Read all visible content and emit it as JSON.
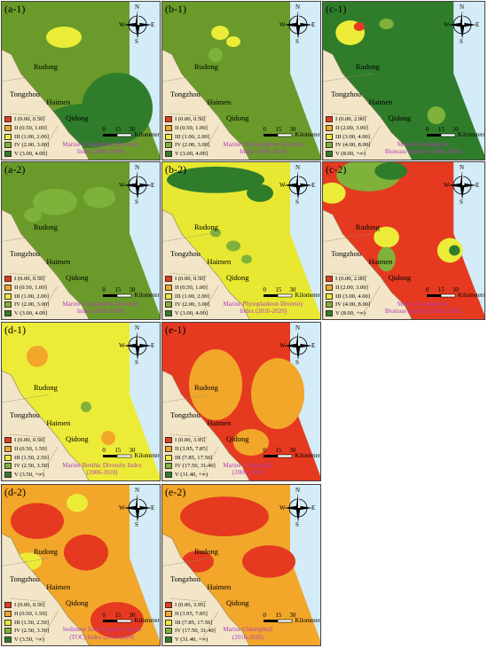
{
  "panels": [
    {
      "id": "a-1",
      "label": "(a-1)",
      "title": [
        "Marine Zooplankton Diversity",
        "Index (2006-2010)"
      ],
      "legend": [
        "I   (0.00, 0.50]",
        "II  (0.50, 1.00]",
        "III (1.00, 2.00]",
        "IV (2.00, 3.00]",
        "V   (3.00, 4.00]"
      ],
      "bg": "#6a9b2a"
    },
    {
      "id": "b-1",
      "label": "(b-1)",
      "title": [
        "Marine Phytoplankton Diversity",
        "Index (2006-2010)"
      ],
      "legend": [
        "I   (0.00, 0.50]",
        "II  (0.50, 1.00]",
        "III (1.00, 2.00]",
        "IV (2.00, 3.00]",
        "V   (3.00, 4.00]"
      ],
      "bg": "#6a9b2a"
    },
    {
      "id": "c-1",
      "label": "(c-1)",
      "title": [
        "Marine Zooplankton",
        "Biomass (mg/m³) (2006-2010)"
      ],
      "legend": [
        "I   (0.00, 2.00]",
        "II  (2.00, 3.00]",
        "III (3.00, 4.00]",
        "IV (4.00, 8.00]",
        "V   (8.00, +∞)"
      ],
      "bg": "#2f7d2a"
    },
    {
      "id": "a-2",
      "label": "(a-2)",
      "title": [
        "Marine Zooplankton Diversity",
        "Index (2016-2020)"
      ],
      "legend": [
        "I   (0.00, 0.50]",
        "II  (0.50, 1.00]",
        "III (1.00, 2.00]",
        "IV (2.00, 3.00]",
        "V   (3.00, 4.00]"
      ],
      "bg": "#6a9b2a"
    },
    {
      "id": "b-2",
      "label": "(b-2)",
      "title": [
        "Marine Phytoplankton Diversity",
        "Index (2016-2020)"
      ],
      "legend": [
        "I   (0.00, 0.50]",
        "II  (0.50, 1.00]",
        "III (1.00, 2.00]",
        "IV (2.00, 3.00]",
        "V   (3.00, 4.00]"
      ],
      "bg": "#e8e832"
    },
    {
      "id": "c-2",
      "label": "(c-2)",
      "title": [
        "Marine Zooplankton",
        "Biomass (mg/m³) (2016-2020)"
      ],
      "legend": [
        "I   (0.00, 2.00]",
        "II  (2.00, 3.00]",
        "III (3.00, 4.00]",
        "IV (4.00, 8.00]",
        "V   (8.00, +∞)"
      ],
      "bg": "#e53a20"
    },
    {
      "id": "d-1",
      "label": "(d-1)",
      "title": [
        "Marine Benthic Diversity Index",
        "(2006-2010)"
      ],
      "legend": [
        "I   (0.00, 0.50]",
        "II  (0.50, 1.50]",
        "III (1.50, 2.50]",
        "IV (2.50, 3.50]",
        "V   (3.50, +∞)"
      ],
      "bg": "#ecec38"
    },
    {
      "id": "e-1",
      "label": "(e-1)",
      "title": [
        "Marine Chlorophyll",
        "(2006-2010)"
      ],
      "legend": [
        "I   (0.00, 3.95]",
        "II  (3.95, 7.85]",
        "III (7.85, 17.50]",
        "IV (17.50, 31.40]",
        "V   (31.40, +∞)"
      ],
      "bg": "#e53a20"
    },
    {
      "id": "d-2",
      "label": "(d-2)",
      "title": [
        "Sediment Total Organic Carbon",
        "(TOC) Index (2016-2020)"
      ],
      "legend": [
        "I   (0.00, 0.50]",
        "II  (0.50, 1.50]",
        "III (1.50, 2.50]",
        "IV (2.50, 3.50]",
        "V   (3.50, +∞)"
      ],
      "bg": "#f2a72a"
    },
    {
      "id": "e-2",
      "label": "(e-2)",
      "title": [
        "Marine Chlorophyll",
        "(2016-2020)"
      ],
      "legend": [
        "I   (0.00, 3.95]",
        "II  (3.95, 7.85]",
        "III (7.85, 17.50]",
        "IV (17.50, 31.40]",
        "V   (31.40, +∞)"
      ],
      "bg": "#f2a72a"
    }
  ],
  "places": {
    "rudong": "Rudong",
    "tongzhou": "Tongzhou",
    "haimen": "Haimen",
    "qidong": "Qidong"
  },
  "scale": {
    "ticks": [
      "0",
      "15",
      "30"
    ],
    "unit": "Kilometers"
  },
  "compass": {
    "n": "N",
    "s": "S",
    "e": "E",
    "w": "W"
  },
  "legend_colors": [
    "#e53a20",
    "#f2a72a",
    "#ecec38",
    "#7fb23a",
    "#2f7d2a"
  ],
  "land_color": "#f3e6c8",
  "water_color": "#d3ecf7"
}
